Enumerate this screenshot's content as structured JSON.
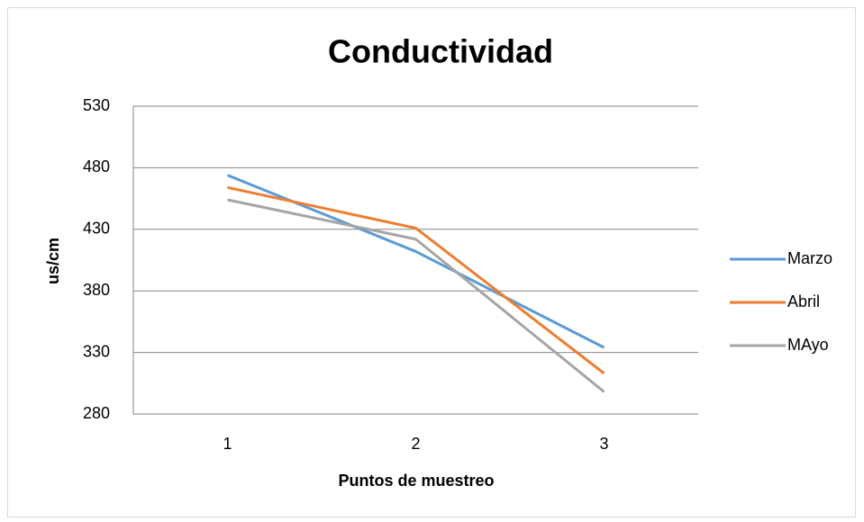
{
  "chart_data": {
    "type": "line",
    "title": "Conductividad",
    "x_label": "Puntos de muestreo",
    "y_label": "us/cm",
    "categories": [
      "1",
      "2",
      "3"
    ],
    "series": [
      {
        "name": "Marzo",
        "color": "#5b9bd5",
        "values": [
          474,
          412,
          334
        ]
      },
      {
        "name": "Abril",
        "color": "#ed7d31",
        "values": [
          464,
          431,
          313
        ]
      },
      {
        "name": "MAyo",
        "color": "#a5a5a5",
        "values": [
          454,
          422,
          298
        ]
      }
    ],
    "ylim": [
      280,
      530
    ],
    "yticks": [
      280,
      330,
      380,
      430,
      480,
      530
    ],
    "grid": true,
    "legend": "right"
  }
}
